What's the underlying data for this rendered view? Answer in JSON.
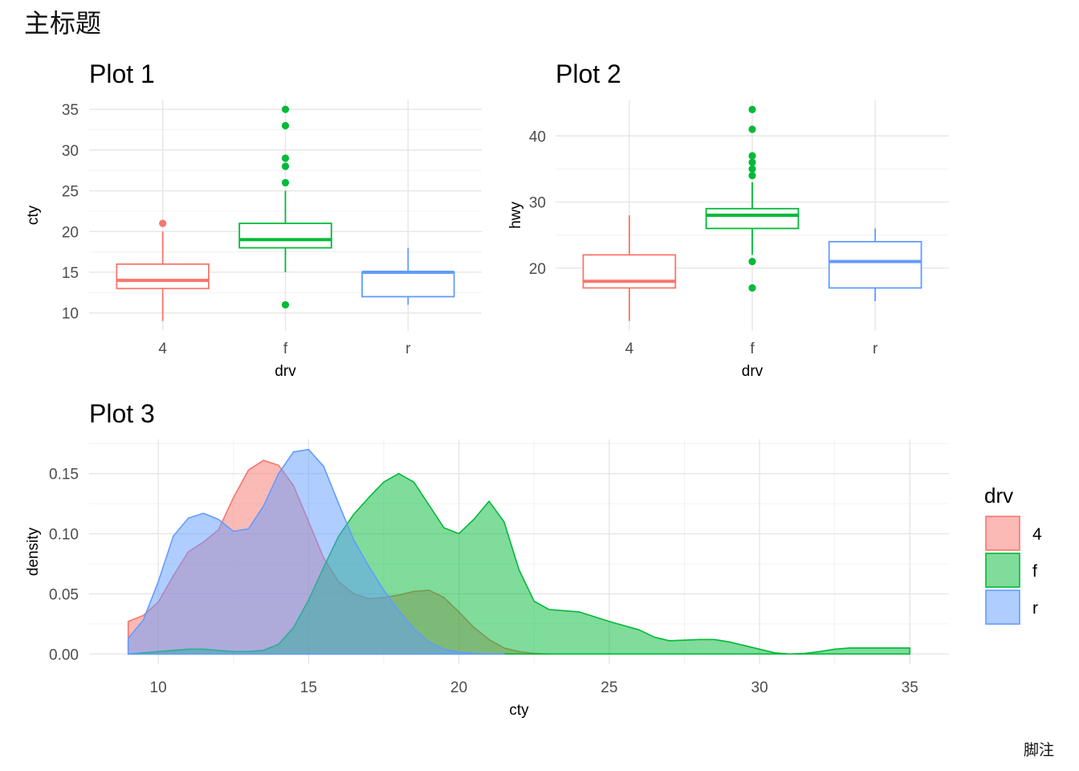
{
  "title": "主标题",
  "caption": "脚注",
  "colors": {
    "4": "#F8766D",
    "f": "#00BA38",
    "r": "#619CFF"
  },
  "chart_data": [
    {
      "id": "plot1",
      "type": "box",
      "title": "Plot 1",
      "xlabel": "drv",
      "ylabel": "cty",
      "categories": [
        "4",
        "f",
        "r"
      ],
      "ylim": [
        7.8,
        36.2
      ],
      "yticks": [
        10,
        15,
        20,
        25,
        30,
        35
      ],
      "grid": true,
      "boxes": [
        {
          "name": "4",
          "lower_whisker": 9,
          "q1": 13,
          "median": 14,
          "q3": 16,
          "upper_whisker": 20,
          "outliers": [
            21
          ]
        },
        {
          "name": "f",
          "lower_whisker": 15,
          "q1": 18,
          "median": 19,
          "q3": 21,
          "upper_whisker": 25,
          "outliers": [
            35,
            33,
            29,
            28,
            26,
            11
          ]
        },
        {
          "name": "r",
          "lower_whisker": 11,
          "q1": 12,
          "median": 15,
          "q3": 15,
          "upper_whisker": 18,
          "outliers": []
        }
      ]
    },
    {
      "id": "plot2",
      "type": "box",
      "title": "Plot 2",
      "xlabel": "drv",
      "ylabel": "hwy",
      "categories": [
        "4",
        "f",
        "r"
      ],
      "ylim": [
        10.5,
        45.5
      ],
      "yticks": [
        20,
        30,
        40
      ],
      "grid": true,
      "boxes": [
        {
          "name": "4",
          "lower_whisker": 12,
          "q1": 17,
          "median": 18,
          "q3": 22,
          "upper_whisker": 28,
          "outliers": []
        },
        {
          "name": "f",
          "lower_whisker": 22,
          "q1": 26,
          "median": 28,
          "q3": 29,
          "upper_whisker": 33,
          "outliers": [
            44,
            41,
            37,
            36,
            35,
            34,
            21,
            17
          ]
        },
        {
          "name": "r",
          "lower_whisker": 15,
          "q1": 17,
          "median": 21,
          "q3": 24,
          "upper_whisker": 26,
          "outliers": []
        }
      ]
    },
    {
      "id": "plot3",
      "type": "area",
      "title": "Plot 3",
      "xlabel": "cty",
      "ylabel": "density",
      "xlim": [
        7.7,
        36.3
      ],
      "ylim": [
        -0.0085,
        0.1785
      ],
      "xticks": [
        10,
        15,
        20,
        25,
        30,
        35
      ],
      "yticks": [
        0.0,
        0.05,
        0.1,
        0.15
      ],
      "ytick_labels": [
        "0.00",
        "0.05",
        "0.10",
        "0.15"
      ],
      "grid": true,
      "legend": {
        "title": "drv",
        "position": "right",
        "items": [
          "4",
          "f",
          "r"
        ]
      },
      "series": [
        {
          "name": "4",
          "x": [
            9,
            9.5,
            10,
            10.5,
            11,
            11.5,
            12,
            12.5,
            13,
            13.5,
            14,
            14.5,
            15,
            15.5,
            16,
            16.5,
            17,
            17.5,
            18,
            18.5,
            19,
            19.5,
            20,
            20.5,
            21,
            21.5,
            22,
            22.5,
            23
          ],
          "y": [
            0.027,
            0.032,
            0.043,
            0.065,
            0.085,
            0.093,
            0.103,
            0.13,
            0.153,
            0.161,
            0.157,
            0.14,
            0.11,
            0.08,
            0.06,
            0.05,
            0.046,
            0.047,
            0.049,
            0.052,
            0.053,
            0.047,
            0.035,
            0.022,
            0.012,
            0.005,
            0.002,
            0.0005,
            0.0
          ]
        },
        {
          "name": "f",
          "x": [
            9,
            10,
            10.5,
            11,
            11.5,
            12,
            12.5,
            13,
            13.5,
            14,
            14.5,
            15,
            15.5,
            16,
            16.5,
            17,
            17.5,
            18,
            18.5,
            19,
            19.5,
            20,
            20.5,
            21,
            21.5,
            22,
            22.5,
            23,
            23.5,
            24,
            25,
            26,
            26.5,
            27,
            28,
            28.5,
            29,
            30,
            30.5,
            31,
            31.5,
            32,
            32.5,
            33,
            34,
            35
          ],
          "y": [
            0.0,
            0.002,
            0.003,
            0.004,
            0.004,
            0.003,
            0.002,
            0.002,
            0.003,
            0.008,
            0.022,
            0.045,
            0.072,
            0.098,
            0.116,
            0.13,
            0.143,
            0.15,
            0.143,
            0.124,
            0.105,
            0.1,
            0.112,
            0.127,
            0.11,
            0.07,
            0.044,
            0.037,
            0.036,
            0.035,
            0.027,
            0.02,
            0.014,
            0.011,
            0.012,
            0.012,
            0.01,
            0.004,
            0.001,
            0.0,
            0.0005,
            0.002,
            0.004,
            0.005,
            0.005,
            0.005
          ]
        },
        {
          "name": "r",
          "x": [
            9,
            9.5,
            10,
            10.5,
            11,
            11.5,
            12,
            12.5,
            13,
            13.5,
            14,
            14.5,
            15,
            15.5,
            16,
            16.5,
            17,
            17.5,
            18,
            18.5,
            19,
            19.5,
            20,
            20.5,
            21,
            21.5
          ],
          "y": [
            0.013,
            0.028,
            0.06,
            0.098,
            0.113,
            0.117,
            0.112,
            0.102,
            0.104,
            0.123,
            0.15,
            0.168,
            0.17,
            0.156,
            0.125,
            0.095,
            0.073,
            0.053,
            0.036,
            0.021,
            0.01,
            0.004,
            0.0015,
            0.0005,
            0.0001,
            0.0
          ]
        }
      ]
    }
  ]
}
